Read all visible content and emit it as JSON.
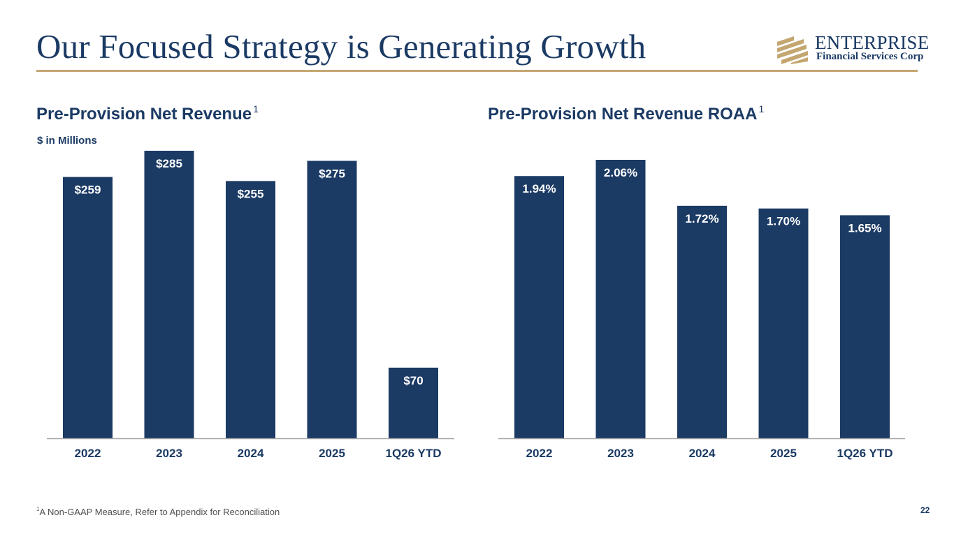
{
  "slide": {
    "title": "Our Focused Strategy is Generating Growth",
    "logo": {
      "name": "ENTERPRISE",
      "subtitle": "Financial Services Corp",
      "icon": "enterprise-logo-mark-icon"
    },
    "footnote_marker": "1",
    "footnote_text": "A Non-GAAP Measure, Refer to Appendix for Reconciliation",
    "page_number": "22"
  },
  "colors": {
    "navy": "#1b3a64",
    "gold": "#c4a671",
    "axis": "#a6a6a6",
    "label_on_bar": "#ffffff"
  },
  "chart_data": [
    {
      "type": "bar",
      "title": "Pre-Provision Net Revenue",
      "title_superscript": "1",
      "subtitle": "$ in Millions",
      "categories": [
        "2022",
        "2023",
        "2024",
        "2025",
        "1Q26 YTD"
      ],
      "values": [
        259,
        285,
        255,
        275,
        70
      ],
      "data_labels": [
        "$259",
        "$285",
        "$255",
        "$275",
        "$70"
      ],
      "xlabel": "",
      "ylabel": "",
      "ylim": [
        0,
        285
      ],
      "grid": false,
      "legend": "none"
    },
    {
      "type": "bar",
      "title": "Pre-Provision Net Revenue ROAA",
      "title_superscript": "1",
      "subtitle": "",
      "categories": [
        "2022",
        "2023",
        "2024",
        "2025",
        "1Q26 YTD"
      ],
      "values": [
        1.94,
        2.06,
        1.72,
        1.7,
        1.65
      ],
      "data_labels": [
        "1.94%",
        "2.06%",
        "1.72%",
        "1.70%",
        "1.65%"
      ],
      "xlabel": "",
      "ylabel": "",
      "ylim": [
        0,
        2.06
      ],
      "grid": false,
      "legend": "none"
    }
  ]
}
